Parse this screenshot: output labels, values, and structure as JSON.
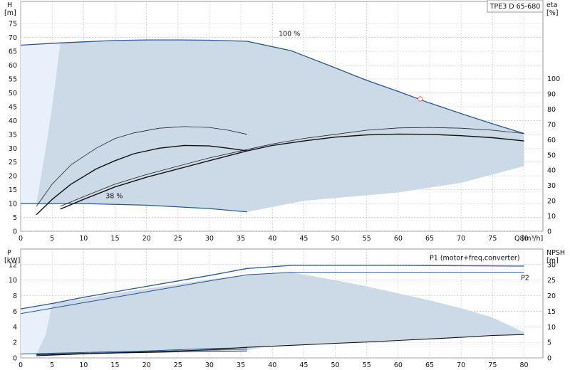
{
  "chart_data": [
    {
      "id": "top",
      "type": "line",
      "title": "TPE3 D 65-680",
      "x_label": "Q [m³/h]",
      "x_ticks": [
        0,
        5,
        10,
        15,
        20,
        25,
        30,
        35,
        40,
        45,
        50,
        55,
        60,
        65,
        70,
        75,
        80
      ],
      "xlim": [
        0,
        83
      ],
      "left_axis": {
        "label_line1": "H",
        "label_line2": "[m]",
        "ticks": [
          0,
          5,
          10,
          15,
          20,
          25,
          30,
          35,
          40,
          45,
          50,
          55,
          60,
          65,
          70,
          75
        ],
        "lim": [
          0,
          83
        ]
      },
      "right_axis": {
        "label_line1": "eta",
        "label_line2": "[%]",
        "ticks": [
          0,
          10,
          20,
          30,
          40,
          50,
          60,
          70,
          80,
          90,
          100
        ],
        "lim": [
          0,
          150.6
        ]
      },
      "area": {
        "color": "#ccd9e6",
        "top_edge": [
          [
            0,
            67.2
          ],
          [
            5,
            67.9
          ],
          [
            15,
            68.9
          ],
          [
            25,
            69.1
          ],
          [
            30,
            69.0
          ],
          [
            36,
            68.6
          ],
          [
            43,
            65.2
          ],
          [
            50,
            59.0
          ],
          [
            60,
            50.5
          ],
          [
            70,
            42.5
          ],
          [
            80,
            35.3
          ]
        ],
        "bottom_edge": [
          [
            80,
            23.5
          ],
          [
            75,
            20.5
          ],
          [
            70,
            17.5
          ],
          [
            60,
            14.0
          ],
          [
            50,
            12.0
          ],
          [
            45,
            11.0
          ],
          [
            36,
            7.0
          ],
          [
            30,
            8.2
          ],
          [
            20,
            9.4
          ],
          [
            10,
            10.0
          ],
          [
            2.5,
            10.0
          ]
        ],
        "left_edge": [
          [
            2.5,
            10.0
          ],
          [
            4,
            30.0
          ],
          [
            5,
            45.0
          ],
          [
            6.3,
            67.8
          ]
        ],
        "light_color": "#e8f1fb"
      },
      "series": [
        {
          "name": "100 %",
          "axis": "left",
          "color": "#2a578f",
          "width": 1.3,
          "points": [
            [
              0,
              67.2
            ],
            [
              5,
              67.9
            ],
            [
              10,
              68.4
            ],
            [
              15,
              68.9
            ],
            [
              20,
              69.1
            ],
            [
              25,
              69.1
            ],
            [
              30,
              69.0
            ],
            [
              36,
              68.6
            ],
            [
              43,
              65.2
            ],
            [
              50,
              59.0
            ],
            [
              55,
              54.5
            ],
            [
              60,
              50.5
            ],
            [
              65,
              46.3
            ],
            [
              70,
              42.5
            ],
            [
              75,
              38.8
            ],
            [
              80,
              35.3
            ]
          ]
        },
        {
          "name": "38 %",
          "axis": "left",
          "color": "#2a578f",
          "width": 1.2,
          "points": [
            [
              0,
              10.0
            ],
            [
              10,
              10.0
            ],
            [
              20,
              9.4
            ],
            [
              30,
              8.2
            ],
            [
              36,
              7.0
            ]
          ]
        },
        {
          "axis": "left",
          "color": "#222222",
          "width": 0.8,
          "points": [
            [
              2.5,
              9.0
            ],
            [
              5,
              17.0
            ],
            [
              8,
              24.0
            ],
            [
              12,
              30.0
            ],
            [
              15,
              33.5
            ],
            [
              18,
              35.5
            ],
            [
              22,
              37.2
            ],
            [
              26,
              37.8
            ],
            [
              30,
              37.5
            ],
            [
              33,
              36.5
            ],
            [
              36,
              35.0
            ]
          ]
        },
        {
          "axis": "left",
          "color": "#111111",
          "width": 1.4,
          "points": [
            [
              2.5,
              6.0
            ],
            [
              5,
              11.5
            ],
            [
              8,
              17.0
            ],
            [
              12,
              22.5
            ],
            [
              15,
              25.5
            ],
            [
              18,
              28.0
            ],
            [
              22,
              30.0
            ],
            [
              26,
              31.0
            ],
            [
              30,
              30.8
            ],
            [
              33,
              30.0
            ],
            [
              36,
              29.0
            ]
          ]
        },
        {
          "axis": "left",
          "color": "#222222",
          "width": 0.8,
          "points": [
            [
              6.3,
              9.0
            ],
            [
              10,
              12.5
            ],
            [
              15,
              17.0
            ],
            [
              20,
              20.5
            ],
            [
              25,
              23.5
            ],
            [
              30,
              26.5
            ],
            [
              36,
              29.5
            ],
            [
              40,
              31.5
            ],
            [
              45,
              33.5
            ],
            [
              50,
              35.0
            ],
            [
              55,
              36.5
            ],
            [
              60,
              37.3
            ],
            [
              65,
              37.5
            ],
            [
              70,
              37.2
            ],
            [
              75,
              36.5
            ],
            [
              80,
              35.3
            ]
          ]
        },
        {
          "axis": "left",
          "color": "#111111",
          "width": 1.4,
          "points": [
            [
              6.3,
              8.0
            ],
            [
              10,
              11.5
            ],
            [
              15,
              16.0
            ],
            [
              20,
              19.5
            ],
            [
              25,
              22.5
            ],
            [
              30,
              25.5
            ],
            [
              36,
              29.0
            ],
            [
              40,
              31.0
            ],
            [
              45,
              32.6
            ],
            [
              50,
              34.0
            ],
            [
              55,
              34.8
            ],
            [
              60,
              35.1
            ],
            [
              65,
              35.0
            ],
            [
              70,
              34.5
            ],
            [
              75,
              33.8
            ],
            [
              80,
              32.6
            ]
          ]
        }
      ],
      "marker": {
        "x": 63.5,
        "y": 47.8,
        "color": "#e07070"
      },
      "annotations": [
        {
          "text": "100 %",
          "x": 41,
          "y": 70.5
        },
        {
          "text": "38 %",
          "x": 13.5,
          "y": 12.0
        }
      ]
    },
    {
      "id": "bottom",
      "type": "line",
      "x_ticks": [
        0,
        5,
        10,
        15,
        20,
        25,
        30,
        35,
        40,
        45,
        50,
        55,
        60,
        65,
        70,
        75,
        80
      ],
      "xlim": [
        0,
        83
      ],
      "left_axis": {
        "label_line1": "P",
        "label_line2": "[kW]",
        "ticks": [
          0,
          2,
          4,
          6,
          8,
          10,
          12
        ],
        "lim": [
          0,
          14
        ]
      },
      "right_axis": {
        "label_line1": "NPSH",
        "label_line2": "[m]",
        "ticks": [
          0,
          5,
          10,
          15,
          20,
          25,
          30
        ],
        "lim": [
          0,
          35
        ]
      },
      "area": {
        "color": "#ccd9e6",
        "top_edge": [
          [
            2.5,
            0.5
          ],
          [
            5,
            7.0
          ],
          [
            10,
            7.6
          ],
          [
            15,
            8.3
          ],
          [
            20,
            8.9
          ],
          [
            25,
            9.5
          ],
          [
            30,
            10.1
          ],
          [
            36,
            10.7
          ],
          [
            43,
            11.0
          ],
          [
            50,
            10.0
          ],
          [
            55,
            9.2
          ],
          [
            60,
            8.3
          ],
          [
            65,
            7.4
          ],
          [
            70,
            6.4
          ],
          [
            75,
            5.2
          ],
          [
            80,
            3.3
          ]
        ],
        "bottom_edge": [
          [
            80,
            3.0
          ],
          [
            60,
            2.3
          ],
          [
            50,
            1.9
          ],
          [
            40,
            1.6
          ],
          [
            36,
            1.0
          ],
          [
            30,
            0.9
          ],
          [
            20,
            0.7
          ],
          [
            10,
            0.5
          ],
          [
            2.5,
            0.3
          ]
        ],
        "light_color": "#e8f1fb"
      },
      "series": [
        {
          "name": "P1 (motor+freq.converter)",
          "axis": "left",
          "color": "#2a578f",
          "width": 1.3,
          "points": [
            [
              0,
              6.3
            ],
            [
              5,
              7.0
            ],
            [
              10,
              7.8
            ],
            [
              15,
              8.5
            ],
            [
              20,
              9.2
            ],
            [
              25,
              9.9
            ],
            [
              30,
              10.6
            ],
            [
              36,
              11.5
            ],
            [
              43,
              11.9
            ],
            [
              50,
              11.9
            ],
            [
              60,
              11.9
            ],
            [
              70,
              11.85
            ],
            [
              80,
              11.8
            ]
          ]
        },
        {
          "name": "P2",
          "axis": "left",
          "color": "#2a578f",
          "width": 1.0,
          "points": [
            [
              0,
              5.7
            ],
            [
              5,
              6.4
            ],
            [
              10,
              7.1
            ],
            [
              15,
              7.8
            ],
            [
              20,
              8.5
            ],
            [
              25,
              9.2
            ],
            [
              30,
              9.9
            ],
            [
              36,
              10.7
            ],
            [
              43,
              11.0
            ],
            [
              50,
              11.0
            ],
            [
              60,
              11.0
            ],
            [
              70,
              11.0
            ],
            [
              80,
              11.0
            ]
          ]
        },
        {
          "axis": "left",
          "color": "#2a578f",
          "width": 1.0,
          "points": [
            [
              0,
              0.5
            ],
            [
              10,
              0.7
            ],
            [
              20,
              0.9
            ],
            [
              30,
              1.2
            ],
            [
              36,
              1.3
            ]
          ]
        },
        {
          "axis": "left",
          "color": "#2a578f",
          "width": 0.8,
          "points": [
            [
              2.5,
              0.45
            ],
            [
              10,
              0.6
            ],
            [
              20,
              0.8
            ],
            [
              30,
              1.0
            ],
            [
              36,
              1.1
            ]
          ]
        },
        {
          "axis": "right",
          "color": "#111111",
          "width": 1.1,
          "points": [
            [
              2.5,
              0.7
            ],
            [
              10,
              1.3
            ],
            [
              20,
              1.9
            ],
            [
              30,
              2.6
            ],
            [
              36,
              3.4
            ],
            [
              45,
              4.2
            ],
            [
              50,
              4.7
            ],
            [
              55,
              5.1
            ],
            [
              60,
              5.6
            ],
            [
              65,
              6.1
            ],
            [
              70,
              6.6
            ],
            [
              75,
              7.2
            ],
            [
              80,
              7.5
            ]
          ]
        },
        {
          "axis": "left",
          "color": "#111111",
          "width": 0.9,
          "points": [
            [
              2.5,
              0.4
            ],
            [
              10,
              0.55
            ],
            [
              20,
              0.7
            ],
            [
              30,
              0.85
            ],
            [
              36,
              0.9
            ]
          ]
        }
      ],
      "annotations": [
        {
          "text": "P1 (motor+freq.converter)",
          "x": 65,
          "y": 12.6
        },
        {
          "text": "P2",
          "x": 79.5,
          "y": 10.0
        }
      ]
    }
  ]
}
